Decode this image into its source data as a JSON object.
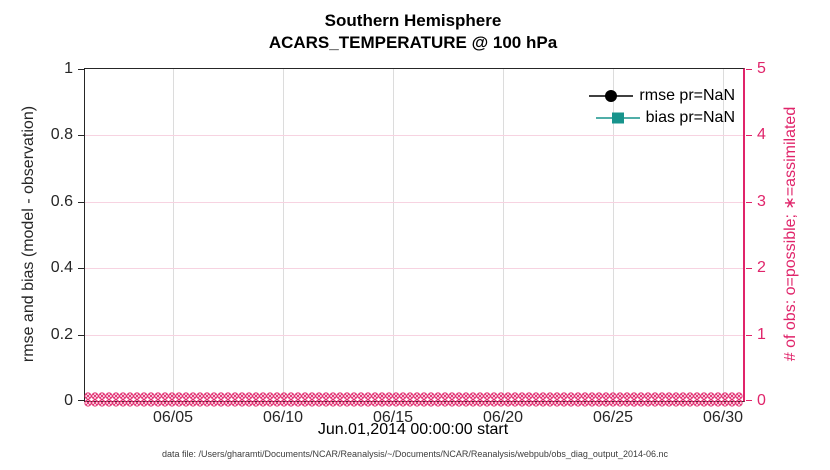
{
  "title": {
    "line1": "Southern Hemisphere",
    "line2": "ACARS_TEMPERATURE @ 100 hPa"
  },
  "colors": {
    "rmse": "#000000",
    "bias": "#17948c",
    "obs": "#e0246a",
    "grid_vertical": "#dcdcdc",
    "grid_horizontal_right": "#f7d3e1",
    "axis_dark": "#262626"
  },
  "legend": {
    "rmse_label": "rmse pr=NaN",
    "bias_label": "bias pr=NaN"
  },
  "left_axis": {
    "label": "rmse and bias (model - observation)",
    "ticks": [
      "0",
      "0.2",
      "0.4",
      "0.6",
      "0.8",
      "1"
    ]
  },
  "right_axis": {
    "label": "# of obs: o=possible; ∗=assimilated",
    "ticks": [
      "0",
      "1",
      "2",
      "3",
      "4",
      "5"
    ]
  },
  "x_axis": {
    "label": "Jun.01,2014 00:00:00 start",
    "ticks": [
      "06/05",
      "06/10",
      "06/15",
      "06/20",
      "06/25",
      "06/30"
    ]
  },
  "footer": "data file: /Users/gharamti/Documents/NCAR/Reanalysis/~/Documents/NCAR/Reanalysis/webpub/obs_diag_output_2014-06.nc",
  "chart_data": {
    "type": "line",
    "title": "Southern Hemisphere",
    "subtitle": "ACARS_TEMPERATURE @ 100 hPa",
    "xlabel": "Jun.01,2014 00:00:00 start",
    "ylabel_left": "rmse and bias (model - observation)",
    "ylabel_right": "# of obs: o=possible; ∗=assimilated",
    "x_range": [
      "2014-06-01 00:00:00",
      "2014-07-01 00:00:00"
    ],
    "x_tick_labels": [
      "06/05",
      "06/10",
      "06/15",
      "06/20",
      "06/25",
      "06/30"
    ],
    "ylim_left": [
      0,
      1
    ],
    "ylim_right": [
      0,
      5
    ],
    "grid": true,
    "legend_position": "upper right, no box",
    "series": [
      {
        "name": "rmse pr=NaN",
        "axis": "left",
        "marker": "filled-circle",
        "color": "#000000",
        "values": "all NaN - no curve drawn"
      },
      {
        "name": "bias pr=NaN",
        "axis": "left",
        "marker": "filled-square",
        "color": "#17948c",
        "values": "all NaN - no curve drawn"
      },
      {
        "name": "# of obs possible (o)",
        "axis": "right",
        "marker": "o",
        "color": "#e0246a",
        "n_points": 120,
        "constant_value": 0
      },
      {
        "name": "# of obs assimilated (∗)",
        "axis": "right",
        "marker": "∗",
        "color": "#e0246a",
        "n_points": 120,
        "constant_value": 0
      }
    ]
  }
}
